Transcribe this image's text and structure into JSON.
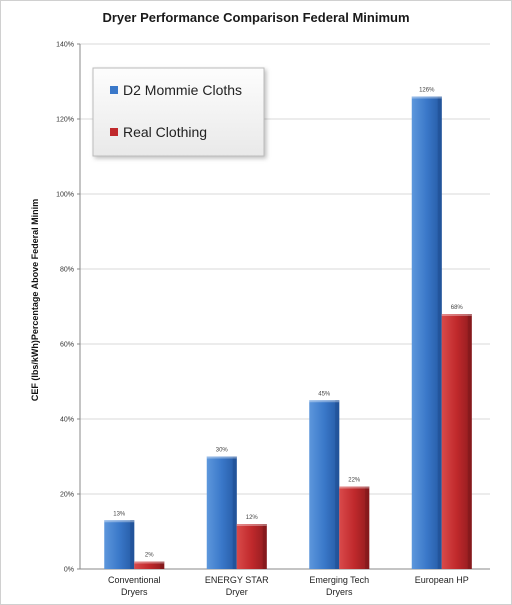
{
  "chart_data": {
    "type": "bar",
    "title": "Dryer Performance Comparison Federal Minimum",
    "ylabel": "CEF (lbs/kWh)Percentage Above Federal Minim",
    "xlabel": "",
    "ylim": [
      0,
      140
    ],
    "yticks": [
      "0%",
      "20%",
      "40%",
      "60%",
      "80%",
      "100%",
      "120%",
      "140%"
    ],
    "categories": [
      [
        "Conventional",
        "Dryers"
      ],
      [
        "ENERGY STAR",
        "Dryer"
      ],
      [
        "Emerging Tech",
        "Dryers"
      ],
      [
        "European HP"
      ]
    ],
    "series": [
      {
        "name": "D2 Mommie Cloths",
        "values": [
          13,
          30,
          45,
          126
        ],
        "labels": [
          "13%",
          "30%",
          "45%",
          "126%"
        ],
        "color": "#3a78c9"
      },
      {
        "name": "Real Clothing",
        "values": [
          2,
          12,
          22,
          68
        ],
        "labels": [
          "2%",
          "12%",
          "22%",
          "68%"
        ],
        "color": "#c0292c"
      }
    ],
    "grid": true,
    "legend_position": "top-left"
  }
}
